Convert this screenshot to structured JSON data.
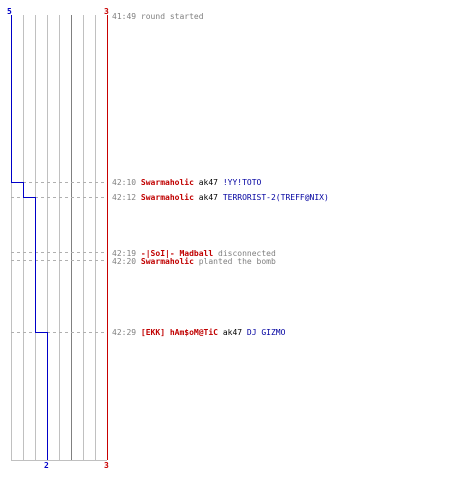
{
  "counters": {
    "ct_start": "5",
    "t_start": "3",
    "ct_end": "2",
    "t_end": "3"
  },
  "colors": {
    "ct": "#0000c8",
    "t": "#c80000",
    "grid": "#c0c0c0",
    "grid_dark": "#808080",
    "dash": "#b0b0b0"
  },
  "events": [
    {
      "time": "41:49",
      "parts": [
        {
          "text": "round started",
          "style": "gray"
        }
      ]
    },
    {
      "time": "42:10",
      "parts": [
        {
          "text": "Swarmaholic",
          "style": "red"
        },
        {
          "text": "ak47",
          "style": "black"
        },
        {
          "text": "!YY!TOTO",
          "style": "blue"
        }
      ]
    },
    {
      "time": "42:12",
      "parts": [
        {
          "text": "Swarmaholic",
          "style": "red"
        },
        {
          "text": "ak47",
          "style": "black"
        },
        {
          "text": "TERRORIST-2(TREFF@NIX)",
          "style": "blue"
        }
      ]
    },
    {
      "time": "42:19",
      "parts": [
        {
          "text": "-|SoI|- Madball",
          "style": "red"
        },
        {
          "text": "disconnected",
          "style": "gray"
        }
      ]
    },
    {
      "time": "42:20",
      "parts": [
        {
          "text": "Swarmaholic",
          "style": "red"
        },
        {
          "text": "planted the bomb",
          "style": "gray"
        }
      ]
    },
    {
      "time": "42:29",
      "parts": [
        {
          "text": "[EKK] hAm$oM@TiC",
          "style": "red"
        },
        {
          "text": "ak47",
          "style": "black"
        },
        {
          "text": "DJ GIZMO",
          "style": "blue"
        }
      ]
    }
  ]
}
